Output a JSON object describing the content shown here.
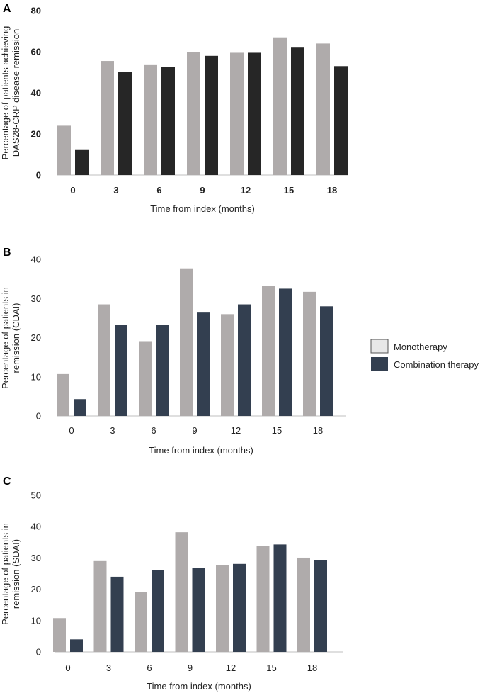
{
  "colors": {
    "mono": "#afabab",
    "combo_a": "#262626",
    "combo_bc": "#333f50",
    "legend_mono_fill": "#e8e8e8",
    "axis": "#bfbfbf"
  },
  "legend": {
    "items": [
      "Monotherapy",
      "Combination therapy"
    ]
  },
  "chart_data": [
    {
      "panel": "A",
      "type": "bar",
      "categories": [
        "0",
        "3",
        "6",
        "9",
        "12",
        "15",
        "18"
      ],
      "series": [
        {
          "name": "Monotherapy",
          "values": [
            24,
            55.5,
            53.5,
            60,
            59.5,
            67,
            64
          ]
        },
        {
          "name": "Combination therapy",
          "values": [
            12.5,
            50,
            52.5,
            58,
            59.5,
            62,
            53
          ]
        }
      ],
      "yticks": [
        "0",
        "20",
        "40",
        "60",
        "80"
      ],
      "ylim": [
        0,
        80
      ],
      "ylabel": [
        "Percentage of patients achieving",
        "DAS28-CRP disease remission"
      ],
      "xlabel": "Time from index (months)"
    },
    {
      "panel": "B",
      "type": "bar",
      "categories": [
        "0",
        "3",
        "6",
        "9",
        "12",
        "15",
        "18"
      ],
      "series": [
        {
          "name": "Monotherapy",
          "values": [
            10.7,
            28.5,
            19.1,
            37.7,
            26,
            33.2,
            31.7
          ]
        },
        {
          "name": "Combination therapy",
          "values": [
            4.3,
            23.2,
            23.2,
            26.4,
            28.5,
            32.5,
            28
          ]
        }
      ],
      "yticks": [
        "0",
        "10",
        "20",
        "30",
        "40"
      ],
      "ylim": [
        0,
        40
      ],
      "ylabel": [
        "Percentage of patients in",
        "remission (CDAI)"
      ],
      "xlabel": "Time from index (months)"
    },
    {
      "panel": "C",
      "type": "bar",
      "categories": [
        "0",
        "3",
        "6",
        "9",
        "12",
        "15",
        "18"
      ],
      "series": [
        {
          "name": "Monotherapy",
          "values": [
            10.8,
            29,
            19.2,
            38.2,
            27.6,
            33.8,
            30.1
          ]
        },
        {
          "name": "Combination therapy",
          "values": [
            4,
            24,
            26.1,
            26.7,
            28.1,
            34.3,
            29.3
          ]
        }
      ],
      "yticks": [
        "0",
        "10",
        "20",
        "30",
        "40",
        "50"
      ],
      "ylim": [
        0,
        50
      ],
      "ylabel": [
        "Percentage of patients in",
        "remission (SDAI)"
      ],
      "xlabel": "Time from index (months)"
    }
  ]
}
